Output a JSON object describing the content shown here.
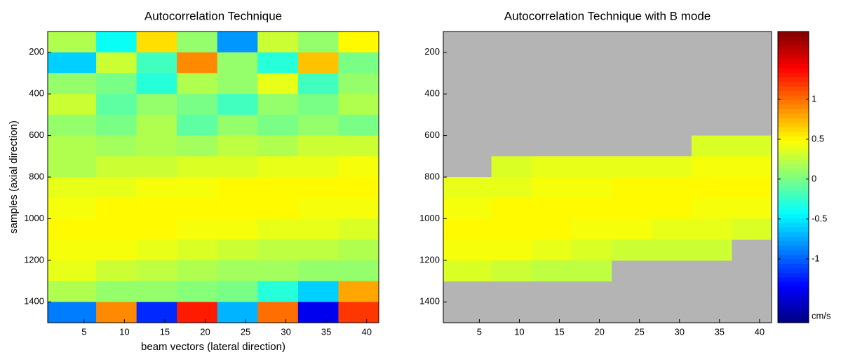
{
  "chart_data": [
    {
      "type": "heatmap",
      "title": "Autocorrelation Technique",
      "xlabel": "beam vectors  (lateral direction)",
      "ylabel": "samples (axial direction)",
      "x_edges": [
        0.5,
        6.5,
        11.5,
        16.5,
        21.5,
        26.5,
        31.5,
        36.5,
        41.5
      ],
      "y_edges": [
        100,
        200,
        300,
        400,
        500,
        600,
        700,
        800,
        900,
        1000,
        1100,
        1200,
        1300,
        1400,
        1500
      ],
      "values": [
        [
          0.2,
          -0.4,
          0.6,
          0.1,
          -0.8,
          0.3,
          0.1,
          0.5
        ],
        [
          -0.6,
          0.3,
          -0.2,
          0.9,
          0.1,
          -0.3,
          0.7,
          0.0
        ],
        [
          0.1,
          0.0,
          -0.3,
          0.2,
          0.1,
          0.4,
          -0.2,
          0.1
        ],
        [
          0.3,
          -0.1,
          0.1,
          0.0,
          -0.2,
          0.1,
          0.0,
          0.2
        ],
        [
          0.1,
          0.0,
          0.2,
          -0.1,
          0.1,
          0.0,
          0.1,
          0.0
        ],
        [
          0.2,
          0.15,
          0.2,
          0.15,
          0.25,
          0.2,
          0.3,
          0.3
        ],
        [
          0.2,
          0.3,
          0.3,
          0.35,
          0.35,
          0.4,
          0.4,
          0.45
        ],
        [
          0.4,
          0.4,
          0.45,
          0.45,
          0.5,
          0.5,
          0.5,
          0.5
        ],
        [
          0.45,
          0.5,
          0.5,
          0.5,
          0.5,
          0.5,
          0.45,
          0.45
        ],
        [
          0.5,
          0.5,
          0.5,
          0.45,
          0.45,
          0.4,
          0.4,
          0.35
        ],
        [
          0.45,
          0.45,
          0.4,
          0.35,
          0.3,
          0.25,
          0.25,
          0.2
        ],
        [
          0.4,
          0.3,
          0.25,
          0.2,
          0.15,
          0.15,
          0.1,
          0.1
        ],
        [
          0.2,
          0.1,
          0.1,
          0.05,
          0.0,
          -0.3,
          -0.6,
          0.8
        ],
        [
          -0.9,
          0.9,
          -1.2,
          1.3,
          -0.7,
          1.0,
          -1.4,
          1.2
        ]
      ],
      "xlim": [
        0.5,
        41.5
      ],
      "ylim": [
        100,
        1500
      ],
      "y_reversed": true,
      "xticks": [
        5,
        10,
        15,
        20,
        25,
        30,
        35,
        40
      ],
      "yticks": [
        200,
        400,
        600,
        800,
        1000,
        1200,
        1400
      ],
      "clim": [
        -1.8,
        1.85
      ]
    },
    {
      "type": "heatmap",
      "title": "Autocorrelation Technique with B mode",
      "x_edges": [
        0.5,
        6.5,
        11.5,
        16.5,
        21.5,
        26.5,
        31.5,
        36.5,
        41.5
      ],
      "y_edges": [
        100,
        200,
        300,
        400,
        500,
        600,
        700,
        800,
        900,
        1000,
        1100,
        1200,
        1300,
        1400,
        1500
      ],
      "values": [
        [
          null,
          null,
          null,
          null,
          null,
          null,
          null,
          null
        ],
        [
          null,
          null,
          null,
          null,
          null,
          null,
          null,
          null
        ],
        [
          null,
          null,
          null,
          null,
          null,
          null,
          null,
          null
        ],
        [
          null,
          null,
          null,
          null,
          null,
          null,
          null,
          null
        ],
        [
          null,
          null,
          null,
          null,
          null,
          null,
          null,
          null
        ],
        [
          null,
          null,
          null,
          null,
          null,
          null,
          0.35,
          0.35
        ],
        [
          null,
          0.35,
          0.4,
          0.4,
          0.4,
          0.4,
          0.45,
          0.45
        ],
        [
          0.4,
          0.4,
          0.45,
          0.45,
          0.5,
          0.5,
          0.5,
          0.5
        ],
        [
          0.45,
          0.5,
          0.5,
          0.5,
          0.5,
          0.5,
          0.45,
          0.45
        ],
        [
          0.5,
          0.5,
          0.5,
          0.45,
          0.45,
          0.4,
          0.4,
          0.35
        ],
        [
          0.45,
          0.45,
          0.4,
          0.35,
          0.3,
          0.3,
          0.3,
          null
        ],
        [
          0.35,
          0.3,
          0.25,
          0.25,
          null,
          null,
          null,
          null
        ],
        [
          null,
          null,
          null,
          null,
          null,
          null,
          null,
          null
        ],
        [
          null,
          null,
          null,
          null,
          null,
          null,
          null,
          null
        ]
      ],
      "xlim": [
        0.5,
        41.5
      ],
      "ylim": [
        100,
        1500
      ],
      "y_reversed": true,
      "xticks": [
        5,
        10,
        15,
        20,
        25,
        30,
        35,
        40
      ],
      "yticks": [
        200,
        400,
        600,
        800,
        1000,
        1200,
        1400
      ],
      "clim": [
        -1.8,
        1.85
      ],
      "colorbar": {
        "ticks": [
          -1,
          -0.5,
          0,
          0.5,
          1
        ],
        "label": "cm/s"
      }
    }
  ]
}
